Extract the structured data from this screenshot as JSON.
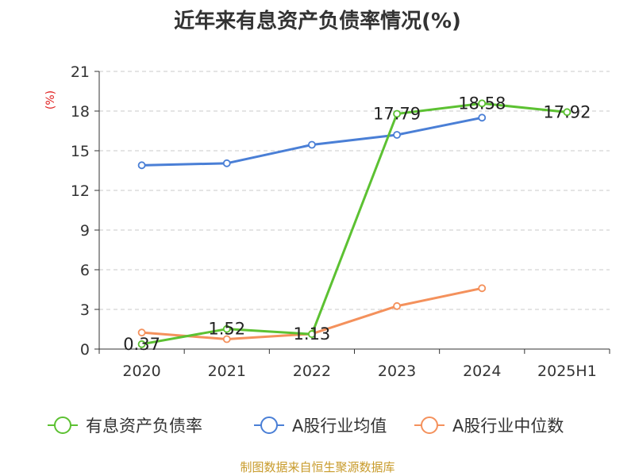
{
  "chart_data": {
    "type": "line",
    "title": "近年来有息资产负债率情况(%)",
    "ylabel": "(%)",
    "xlabel": "",
    "ylim": [
      0,
      21
    ],
    "yticks": [
      0,
      3,
      6,
      9,
      12,
      15,
      18,
      21
    ],
    "categories": [
      "2020",
      "2021",
      "2022",
      "2023",
      "2024",
      "2025H1"
    ],
    "grid": true,
    "legend_position": "bottom",
    "series": [
      {
        "name": "有息资产负债率",
        "color": "#5cc132",
        "values": [
          0.37,
          1.52,
          1.13,
          17.79,
          18.58,
          17.92
        ],
        "labels": [
          "0.37",
          "1.52",
          "1.13",
          "17.79",
          "18.58",
          "17.92"
        ]
      },
      {
        "name": "A股行业均值",
        "color": "#4a7fd6",
        "values": [
          13.9,
          14.05,
          15.45,
          16.2,
          17.5,
          null
        ]
      },
      {
        "name": "A股行业中位数",
        "color": "#f4915c",
        "values": [
          1.25,
          0.75,
          1.15,
          3.25,
          4.6,
          null
        ]
      }
    ]
  },
  "footer": {
    "source": "制图数据来自恒生聚源数据库"
  }
}
